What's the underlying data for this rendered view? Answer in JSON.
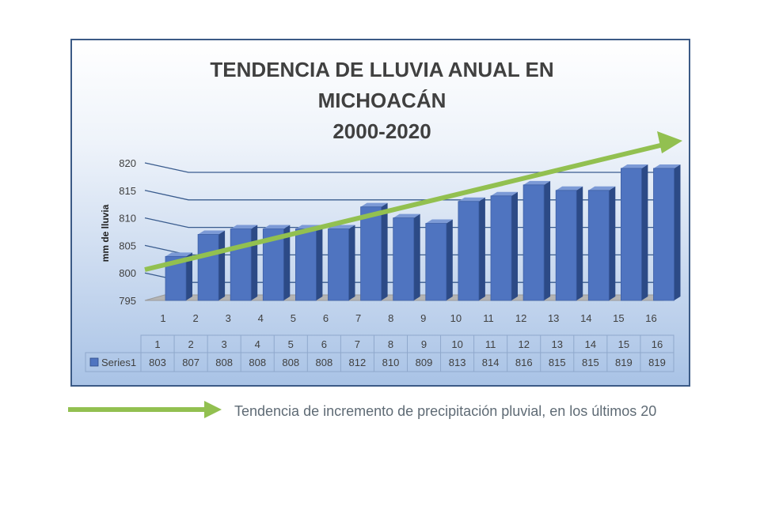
{
  "chart_data": {
    "type": "bar",
    "title_lines": [
      "TENDENCIA DE LLUVIA ANUAL EN",
      "MICHOACÁN",
      "2000-2020"
    ],
    "ylabel": "mm de lluvia",
    "xlabel": "",
    "categories": [
      "1",
      "2",
      "3",
      "4",
      "5",
      "6",
      "7",
      "8",
      "9",
      "10",
      "11",
      "12",
      "13",
      "14",
      "15",
      "16"
    ],
    "series": [
      {
        "name": "Series1",
        "values": [
          803,
          807,
          808,
          808,
          808,
          808,
          812,
          810,
          809,
          813,
          814,
          816,
          815,
          815,
          819,
          819
        ]
      }
    ],
    "ylim": [
      795,
      820
    ],
    "yticks": [
      795,
      800,
      805,
      810,
      815,
      820
    ],
    "grid": true,
    "legend": "data-table",
    "trend_arrow": true,
    "colors": {
      "bar": "#4f74c0",
      "bar_top": "#7c9ad6",
      "bar_side": "#2c4a86",
      "trend": "#92c050"
    }
  },
  "caption": "Tendencia de incremento de precipitación pluvial, en los últimos 20"
}
